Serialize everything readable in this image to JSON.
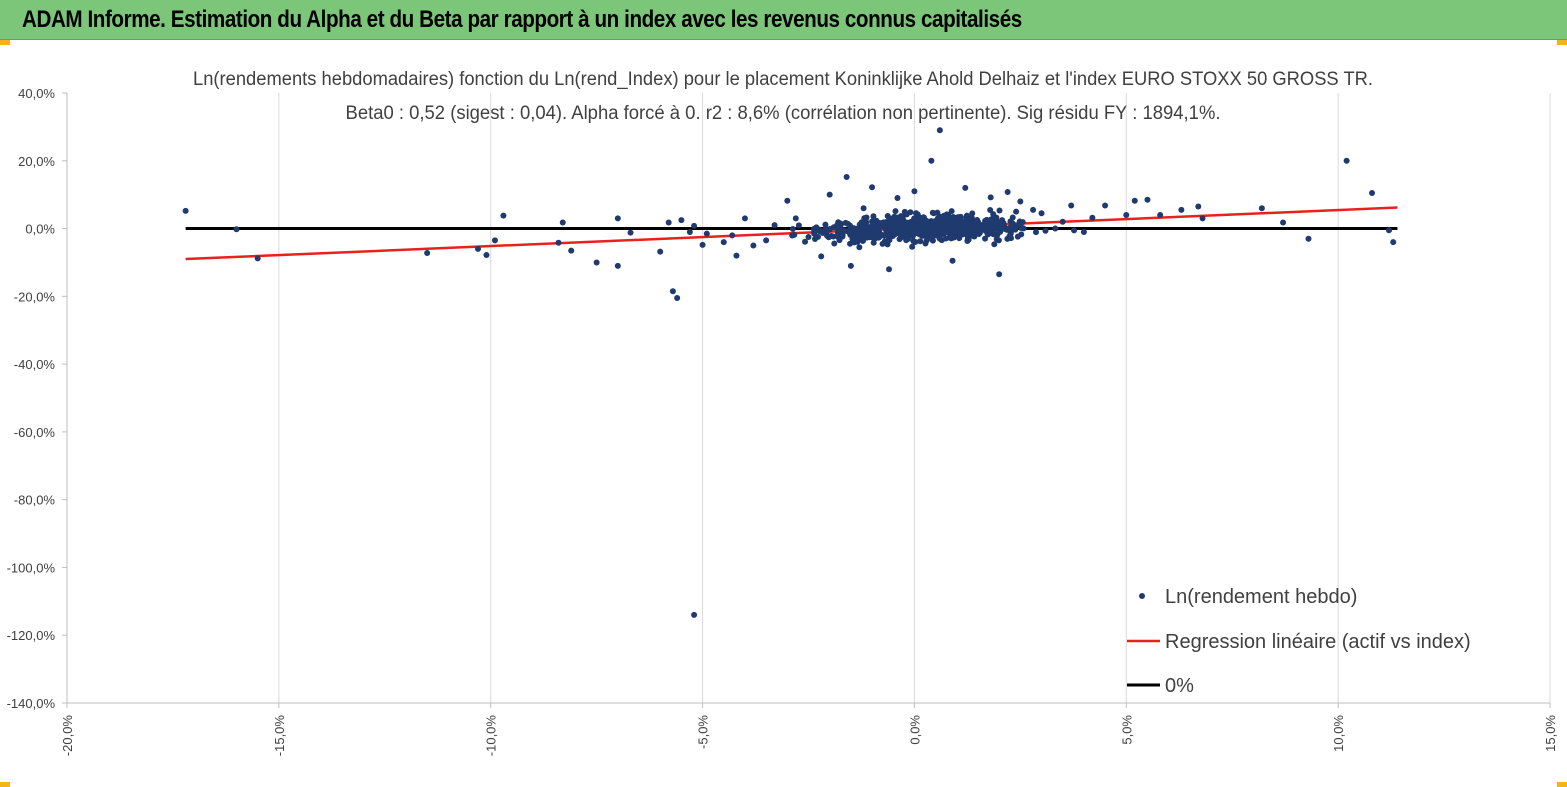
{
  "header": {
    "title": "ADAM Informe. Estimation du Alpha et du Beta par rapport à un index avec les revenus connus capitalisés"
  },
  "colors": {
    "banner": "#7cc67a",
    "points": "#1f3a6e",
    "regression": "#e8211b",
    "zero_line": "#000000",
    "corner_marks": "#f3b41b"
  },
  "chart_data": {
    "type": "scatter",
    "title_line1": "Ln(rendements hebdomadaires) fonction du Ln(rend_Index) pour le placement Koninklijke Ahold Delhaiz et l'index EURO STOXX 50 GROSS TR.",
    "title_line2": "Beta0 : 0,52 (sigest : 0,04). Alpha forcé à 0. r2 : 8,6% (corrélation non pertinente). Sig résidu FY : 1894,1%.",
    "xlim": [
      -0.2,
      0.15
    ],
    "ylim": [
      -1.4,
      0.4
    ],
    "x_ticks": [
      -0.2,
      -0.15,
      -0.1,
      -0.05,
      0.0,
      0.05,
      0.1,
      0.15
    ],
    "x_tick_labels": [
      "-20,0%",
      "-15,0%",
      "-10,0%",
      "-5,0%",
      "0,0%",
      "5,0%",
      "10,0%",
      "15,0%"
    ],
    "y_ticks": [
      0.4,
      0.2,
      0.0,
      -0.2,
      -0.4,
      -0.6,
      -0.8,
      -1.0,
      -1.2,
      -1.4
    ],
    "y_tick_labels": [
      "40,0%",
      "20,0%",
      "0,0%",
      "-20,0%",
      "-40,0%",
      "-60,0%",
      "-80,0%",
      "-100,0%",
      "-120,0%",
      "-140,0%"
    ],
    "grid": "vertical",
    "legend_position": "bottom-right",
    "series": [
      {
        "name": "Ln(rendement hebdo)",
        "kind": "scatter",
        "x": [
          -0.172,
          -0.16,
          -0.155,
          -0.115,
          -0.103,
          -0.101,
          -0.099,
          -0.097,
          -0.084,
          -0.083,
          -0.081,
          -0.075,
          -0.07,
          -0.07,
          -0.067,
          -0.06,
          -0.058,
          -0.057,
          -0.056,
          -0.055,
          -0.053,
          -0.052,
          -0.052,
          -0.05,
          -0.049,
          -0.045,
          -0.043,
          -0.042,
          -0.04,
          -0.038,
          -0.035,
          -0.033,
          -0.03,
          -0.025,
          -0.022,
          -0.015,
          -0.016,
          -0.013,
          -0.01,
          -0.006,
          -0.004,
          0.004,
          0.006,
          0.009,
          0.012,
          0.018,
          0.02,
          0.022,
          0.025,
          0.028,
          0.03,
          0.035,
          0.037,
          0.04,
          0.042,
          0.045,
          0.05,
          0.052,
          0.055,
          0.058,
          0.063,
          0.067,
          0.068,
          0.082,
          0.087,
          0.093,
          0.102,
          0.108,
          0.112,
          0.113,
          -0.02,
          -0.012,
          -0.005,
          0.0,
          0.008,
          0.015,
          0.024,
          -0.028,
          -0.018
        ],
        "y": [
          0.052,
          -0.002,
          -0.088,
          -0.072,
          -0.06,
          -0.078,
          -0.035,
          0.038,
          -0.042,
          0.018,
          -0.065,
          -0.1,
          0.03,
          -0.11,
          -0.012,
          -0.068,
          0.018,
          -0.185,
          -0.205,
          0.025,
          -0.01,
          -1.14,
          0.008,
          -0.048,
          -0.015,
          -0.04,
          -0.02,
          -0.08,
          0.03,
          -0.05,
          -0.035,
          0.01,
          0.082,
          -0.025,
          -0.082,
          -0.11,
          0.152,
          -0.055,
          0.122,
          -0.12,
          0.09,
          0.2,
          0.29,
          -0.095,
          0.12,
          0.092,
          -0.135,
          0.108,
          0.08,
          0.055,
          0.045,
          0.02,
          0.068,
          -0.01,
          0.032,
          0.068,
          0.04,
          0.082,
          0.085,
          0.04,
          0.055,
          0.065,
          0.03,
          0.06,
          0.018,
          -0.03,
          0.2,
          0.105,
          -0.005,
          -0.04,
          0.1,
          0.06,
          0.02,
          0.11,
          0.04,
          0.02,
          0.05,
          0.03,
          -0.025
        ]
      },
      {
        "name": "Regression linéaire (actif vs index)",
        "kind": "line",
        "x": [
          -0.172,
          0.114
        ],
        "y": [
          -0.09,
          0.062
        ]
      },
      {
        "name": "0%",
        "kind": "line",
        "x": [
          -0.172,
          0.114
        ],
        "y": [
          0.0,
          0.0
        ]
      }
    ]
  }
}
